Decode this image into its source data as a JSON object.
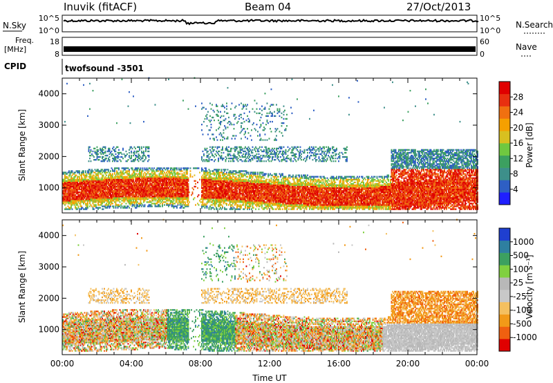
{
  "header": {
    "station": "Inuvik (fitACF)",
    "beam": "Beam 04",
    "date": "27/Oct/2013"
  },
  "nsky_panel": {
    "label": "N.Sky",
    "right_label": "N.Search",
    "left_ticks": [
      "10^5",
      "10^0"
    ],
    "right_ticks": [
      "10^5",
      "10^0"
    ]
  },
  "freq_panel": {
    "label_line1": "Freq.",
    "label_line2": "[MHz]",
    "left_ticks": [
      "18",
      "8"
    ],
    "right_ticks": [
      "60",
      "0"
    ],
    "right_label": "Nave"
  },
  "cpid_panel": {
    "label": "CPID",
    "value": "twofsound -3501"
  },
  "colors": {
    "power_scale": [
      "#1f1fff",
      "#2e5fc4",
      "#3d8f8a",
      "#3ca060",
      "#70c840",
      "#d8c020",
      "#f5a000",
      "#f07010",
      "#e83010",
      "#e00000"
    ],
    "velocity_scale": [
      "#e00000",
      "#f06010",
      "#f29a18",
      "#f4c060",
      "#c8c8c8",
      "#b8b8b8",
      "#80d040",
      "#3ca060",
      "#2e7fa0",
      "#1f3fd0"
    ]
  },
  "chart_data": [
    {
      "type": "heatmap",
      "name": "power",
      "xlabel": "",
      "ylabel": "Slant Range [km]",
      "xlim": [
        0,
        24
      ],
      "ylim": [
        200,
        4500
      ],
      "y_ticks": [
        1000,
        2000,
        3000,
        4000
      ],
      "colorbar_label": "Power [dB]",
      "colorbar_ticks": [
        "4",
        "8",
        "12",
        "16",
        "20",
        "24",
        "28"
      ],
      "colorbar_range": [
        0,
        32
      ]
    },
    {
      "type": "heatmap",
      "name": "velocity",
      "xlabel": "Time UT",
      "ylabel": "Slant Range [km]",
      "xlim": [
        0,
        24
      ],
      "ylim": [
        200,
        4500
      ],
      "x_ticks": [
        "00:00",
        "04:00",
        "08:00",
        "12:00",
        "16:00",
        "20:00",
        "00:00"
      ],
      "y_ticks": [
        1000,
        2000,
        3000,
        4000
      ],
      "colorbar_label": "Velocity [m s⁻¹]",
      "colorbar_ticks": [
        "1000",
        "500",
        "100",
        "25",
        "-25",
        "-100",
        "-500",
        "-1000"
      ]
    }
  ]
}
